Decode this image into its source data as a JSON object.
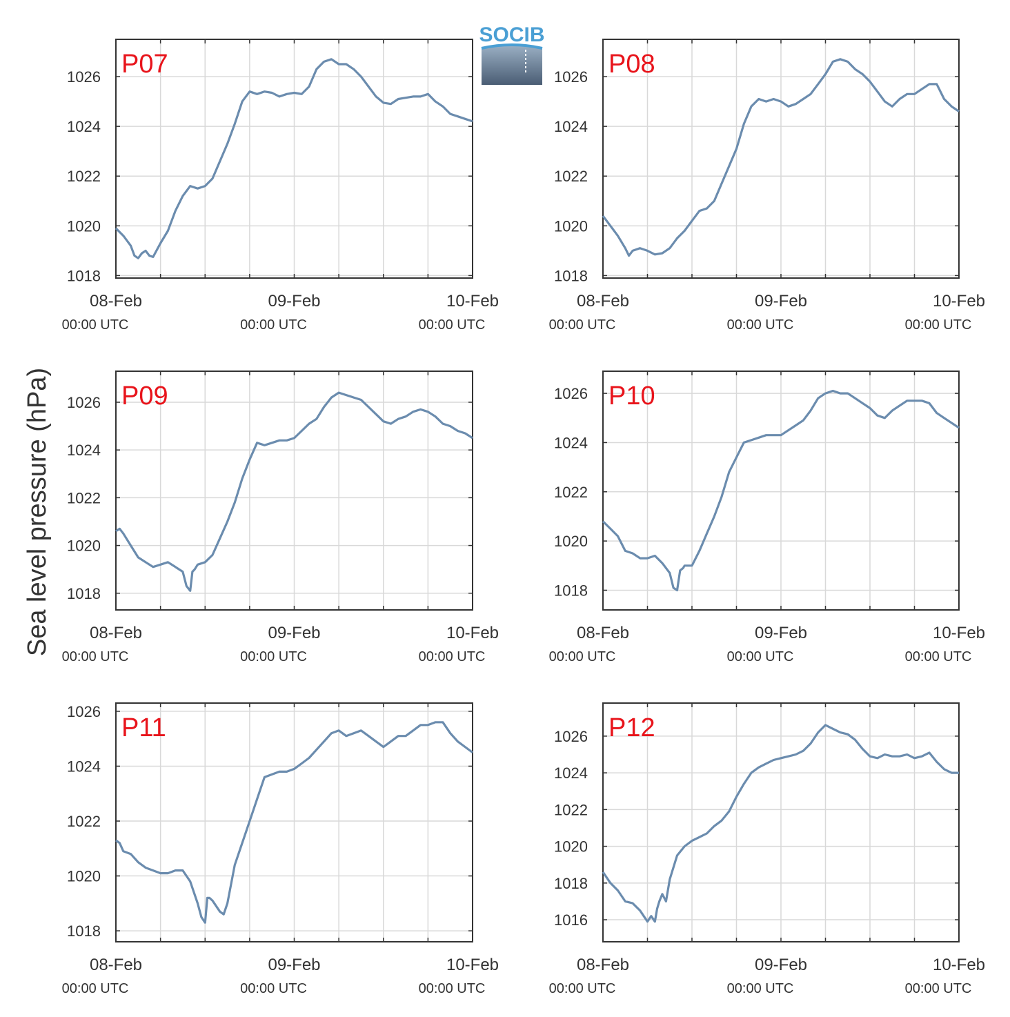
{
  "figure": {
    "ylabel": "Sea level pressure (hPa)",
    "logo_text": "SOCIB",
    "colors": {
      "line": "#6b8cae",
      "panel_label": "#e8141b",
      "grid": "#d9d9d9",
      "axis": "#333333"
    }
  },
  "chart_data": [
    {
      "type": "line",
      "label": "P07",
      "xlabels": [
        "08-Feb",
        "09-Feb",
        "10-Feb"
      ],
      "xsublabels": [
        "00:00 UTC",
        "00:00 UTC",
        "00:00 UTC"
      ],
      "xlim": [
        0,
        48
      ],
      "ylim": [
        1017.9,
        1027.5
      ],
      "yticks": [
        1018,
        1020,
        1022,
        1024,
        1026
      ],
      "x": [
        0,
        1,
        2,
        2.5,
        3,
        3.5,
        4,
        4.5,
        5,
        6,
        7,
        8,
        9,
        10,
        11,
        12,
        13,
        14,
        15,
        16,
        17,
        18,
        19,
        20,
        21,
        22,
        23,
        24,
        25,
        26,
        27,
        28,
        29,
        30,
        31,
        32,
        33,
        34,
        35,
        36,
        37,
        38,
        39,
        40,
        41,
        42,
        43,
        44,
        45,
        46,
        47,
        48
      ],
      "y": [
        1019.9,
        1019.6,
        1019.2,
        1018.8,
        1018.7,
        1018.9,
        1019.0,
        1018.8,
        1018.75,
        1019.3,
        1019.8,
        1020.6,
        1021.2,
        1021.6,
        1021.5,
        1021.6,
        1021.9,
        1022.6,
        1023.3,
        1024.1,
        1025.0,
        1025.4,
        1025.3,
        1025.4,
        1025.35,
        1025.2,
        1025.3,
        1025.35,
        1025.3,
        1025.6,
        1026.3,
        1026.6,
        1026.7,
        1026.5,
        1026.5,
        1026.3,
        1026.0,
        1025.6,
        1025.2,
        1024.95,
        1024.9,
        1025.1,
        1025.15,
        1025.2,
        1025.2,
        1025.3,
        1025.0,
        1024.8,
        1024.5,
        1024.4,
        1024.3,
        1024.2
      ]
    },
    {
      "type": "line",
      "label": "P08",
      "xlabels": [
        "08-Feb",
        "09-Feb",
        "10-Feb"
      ],
      "xsublabels": [
        "00:00 UTC",
        "00:00 UTC",
        "00:00 UTC"
      ],
      "xlim": [
        0,
        48
      ],
      "ylim": [
        1017.9,
        1027.5
      ],
      "yticks": [
        1018,
        1020,
        1022,
        1024,
        1026
      ],
      "x": [
        0,
        1,
        2,
        3,
        3.5,
        4,
        5,
        6,
        7,
        8,
        9,
        10,
        11,
        12,
        13,
        14,
        15,
        16,
        17,
        18,
        19,
        20,
        21,
        22,
        23,
        24,
        25,
        26,
        27,
        28,
        29,
        30,
        31,
        32,
        33,
        34,
        35,
        36,
        37,
        38,
        39,
        40,
        41,
        42,
        43,
        44,
        45,
        46,
        47,
        48
      ],
      "y": [
        1020.4,
        1020.0,
        1019.6,
        1019.1,
        1018.8,
        1019.0,
        1019.1,
        1019.0,
        1018.85,
        1018.9,
        1019.1,
        1019.5,
        1019.8,
        1020.2,
        1020.6,
        1020.7,
        1021.0,
        1021.7,
        1022.4,
        1023.1,
        1024.1,
        1024.8,
        1025.1,
        1025.0,
        1025.1,
        1025.0,
        1024.8,
        1024.9,
        1025.1,
        1025.3,
        1025.7,
        1026.1,
        1026.6,
        1026.7,
        1026.6,
        1026.3,
        1026.1,
        1025.8,
        1025.4,
        1025.0,
        1024.8,
        1025.1,
        1025.3,
        1025.3,
        1025.5,
        1025.7,
        1025.7,
        1025.1,
        1024.8,
        1024.6
      ]
    },
    {
      "type": "line",
      "label": "P09",
      "xlabels": [
        "08-Feb",
        "09-Feb",
        "10-Feb"
      ],
      "xsublabels": [
        "00:00 UTC",
        "00:00 UTC",
        "00:00 UTC"
      ],
      "xlim": [
        0,
        48
      ],
      "ylim": [
        1017.3,
        1027.3
      ],
      "yticks": [
        1018,
        1020,
        1022,
        1024,
        1026
      ],
      "x": [
        0,
        0.5,
        1,
        2,
        3,
        4,
        5,
        6,
        7,
        8,
        9,
        9.5,
        10,
        10.3,
        10.6,
        11,
        12,
        13,
        14,
        15,
        16,
        17,
        18,
        19,
        20,
        21,
        22,
        23,
        24,
        25,
        26,
        27,
        28,
        29,
        30,
        31,
        32,
        33,
        34,
        35,
        36,
        37,
        38,
        39,
        40,
        41,
        42,
        43,
        44,
        45,
        46,
        47,
        48
      ],
      "y": [
        1020.6,
        1020.7,
        1020.5,
        1020.0,
        1019.5,
        1019.3,
        1019.1,
        1019.2,
        1019.3,
        1019.1,
        1018.9,
        1018.3,
        1018.1,
        1018.9,
        1019.0,
        1019.2,
        1019.3,
        1019.6,
        1020.3,
        1021.0,
        1021.8,
        1022.8,
        1023.6,
        1024.3,
        1024.2,
        1024.3,
        1024.4,
        1024.4,
        1024.5,
        1024.8,
        1025.1,
        1025.3,
        1025.8,
        1026.2,
        1026.4,
        1026.3,
        1026.2,
        1026.1,
        1025.8,
        1025.5,
        1025.2,
        1025.1,
        1025.3,
        1025.4,
        1025.6,
        1025.7,
        1025.6,
        1025.4,
        1025.1,
        1025.0,
        1024.8,
        1024.7,
        1024.5
      ]
    },
    {
      "type": "line",
      "label": "P10",
      "xlabels": [
        "08-Feb",
        "09-Feb",
        "10-Feb"
      ],
      "xsublabels": [
        "00:00 UTC",
        "00:00 UTC",
        "00:00 UTC"
      ],
      "xlim": [
        0,
        48
      ],
      "ylim": [
        1017.2,
        1026.9
      ],
      "yticks": [
        1018,
        1020,
        1022,
        1024,
        1026
      ],
      "x": [
        0,
        1,
        2,
        3,
        4,
        5,
        6,
        7,
        8,
        9,
        9.5,
        10,
        10.4,
        10.8,
        11,
        12,
        13,
        14,
        15,
        16,
        17,
        18,
        19,
        20,
        21,
        22,
        23,
        24,
        25,
        26,
        27,
        28,
        29,
        30,
        31,
        32,
        33,
        34,
        35,
        36,
        37,
        38,
        39,
        40,
        41,
        42,
        43,
        44,
        45,
        46,
        47,
        48
      ],
      "y": [
        1020.8,
        1020.5,
        1020.2,
        1019.6,
        1019.5,
        1019.3,
        1019.3,
        1019.4,
        1019.1,
        1018.7,
        1018.1,
        1018.0,
        1018.8,
        1018.9,
        1019.0,
        1019.0,
        1019.6,
        1020.3,
        1021.0,
        1021.8,
        1022.8,
        1023.4,
        1024.0,
        1024.1,
        1024.2,
        1024.3,
        1024.3,
        1024.3,
        1024.5,
        1024.7,
        1024.9,
        1025.3,
        1025.8,
        1026.0,
        1026.1,
        1026.0,
        1026.0,
        1025.8,
        1025.6,
        1025.4,
        1025.1,
        1025.0,
        1025.3,
        1025.5,
        1025.7,
        1025.7,
        1025.7,
        1025.6,
        1025.2,
        1025.0,
        1024.8,
        1024.6
      ]
    },
    {
      "type": "line",
      "label": "P11",
      "xlabels": [
        "08-Feb",
        "09-Feb",
        "10-Feb"
      ],
      "xsublabels": [
        "00:00 UTC",
        "00:00 UTC",
        "00:00 UTC"
      ],
      "xlim": [
        0,
        48
      ],
      "ylim": [
        1017.6,
        1026.3
      ],
      "yticks": [
        1018,
        1020,
        1022,
        1024,
        1026
      ],
      "x": [
        0,
        0.5,
        1,
        2,
        3,
        4,
        5,
        6,
        7,
        8,
        9,
        10,
        11,
        11.5,
        12,
        12.3,
        12.6,
        13,
        14,
        14.5,
        15,
        16,
        17,
        18,
        19,
        20,
        21,
        22,
        23,
        24,
        25,
        26,
        27,
        28,
        29,
        30,
        31,
        32,
        33,
        34,
        35,
        36,
        37,
        38,
        39,
        40,
        41,
        42,
        43,
        44,
        45,
        46,
        47,
        48
      ],
      "y": [
        1021.3,
        1021.2,
        1020.9,
        1020.8,
        1020.5,
        1020.3,
        1020.2,
        1020.1,
        1020.1,
        1020.2,
        1020.2,
        1019.8,
        1019.0,
        1018.5,
        1018.3,
        1019.2,
        1019.2,
        1019.1,
        1018.7,
        1018.6,
        1019.0,
        1020.4,
        1021.2,
        1022.0,
        1022.8,
        1023.6,
        1023.7,
        1023.8,
        1023.8,
        1023.9,
        1024.1,
        1024.3,
        1024.6,
        1024.9,
        1025.2,
        1025.3,
        1025.1,
        1025.2,
        1025.3,
        1025.1,
        1024.9,
        1024.7,
        1024.9,
        1025.1,
        1025.1,
        1025.3,
        1025.5,
        1025.5,
        1025.6,
        1025.6,
        1025.2,
        1024.9,
        1024.7,
        1024.5
      ]
    },
    {
      "type": "line",
      "label": "P12",
      "xlabels": [
        "08-Feb",
        "09-Feb",
        "10-Feb"
      ],
      "xsublabels": [
        "00:00 UTC",
        "00:00 UTC",
        "00:00 UTC"
      ],
      "xlim": [
        0,
        48
      ],
      "ylim": [
        1014.8,
        1027.8
      ],
      "yticks": [
        1016,
        1018,
        1020,
        1022,
        1024,
        1026
      ],
      "x": [
        0,
        1,
        2,
        3,
        4,
        5,
        6,
        6.5,
        7,
        7.3,
        7.6,
        8,
        8.5,
        9,
        10,
        11,
        12,
        13,
        14,
        15,
        16,
        17,
        18,
        19,
        20,
        21,
        22,
        23,
        24,
        25,
        26,
        27,
        28,
        29,
        30,
        31,
        32,
        33,
        34,
        35,
        36,
        37,
        38,
        39,
        40,
        41,
        42,
        43,
        44,
        45,
        46,
        47,
        48
      ],
      "y": [
        1018.6,
        1018.0,
        1017.6,
        1017.0,
        1016.9,
        1016.5,
        1015.9,
        1016.2,
        1015.9,
        1016.6,
        1017.0,
        1017.4,
        1017.0,
        1018.2,
        1019.5,
        1020.0,
        1020.3,
        1020.5,
        1020.7,
        1021.1,
        1021.4,
        1021.9,
        1022.7,
        1023.4,
        1024.0,
        1024.3,
        1024.5,
        1024.7,
        1024.8,
        1024.9,
        1025.0,
        1025.2,
        1025.6,
        1026.2,
        1026.6,
        1026.4,
        1026.2,
        1026.1,
        1025.8,
        1025.3,
        1024.9,
        1024.8,
        1025.0,
        1024.9,
        1024.9,
        1025.0,
        1024.8,
        1024.9,
        1025.1,
        1024.6,
        1024.2,
        1024.0,
        1024.0
      ]
    }
  ]
}
